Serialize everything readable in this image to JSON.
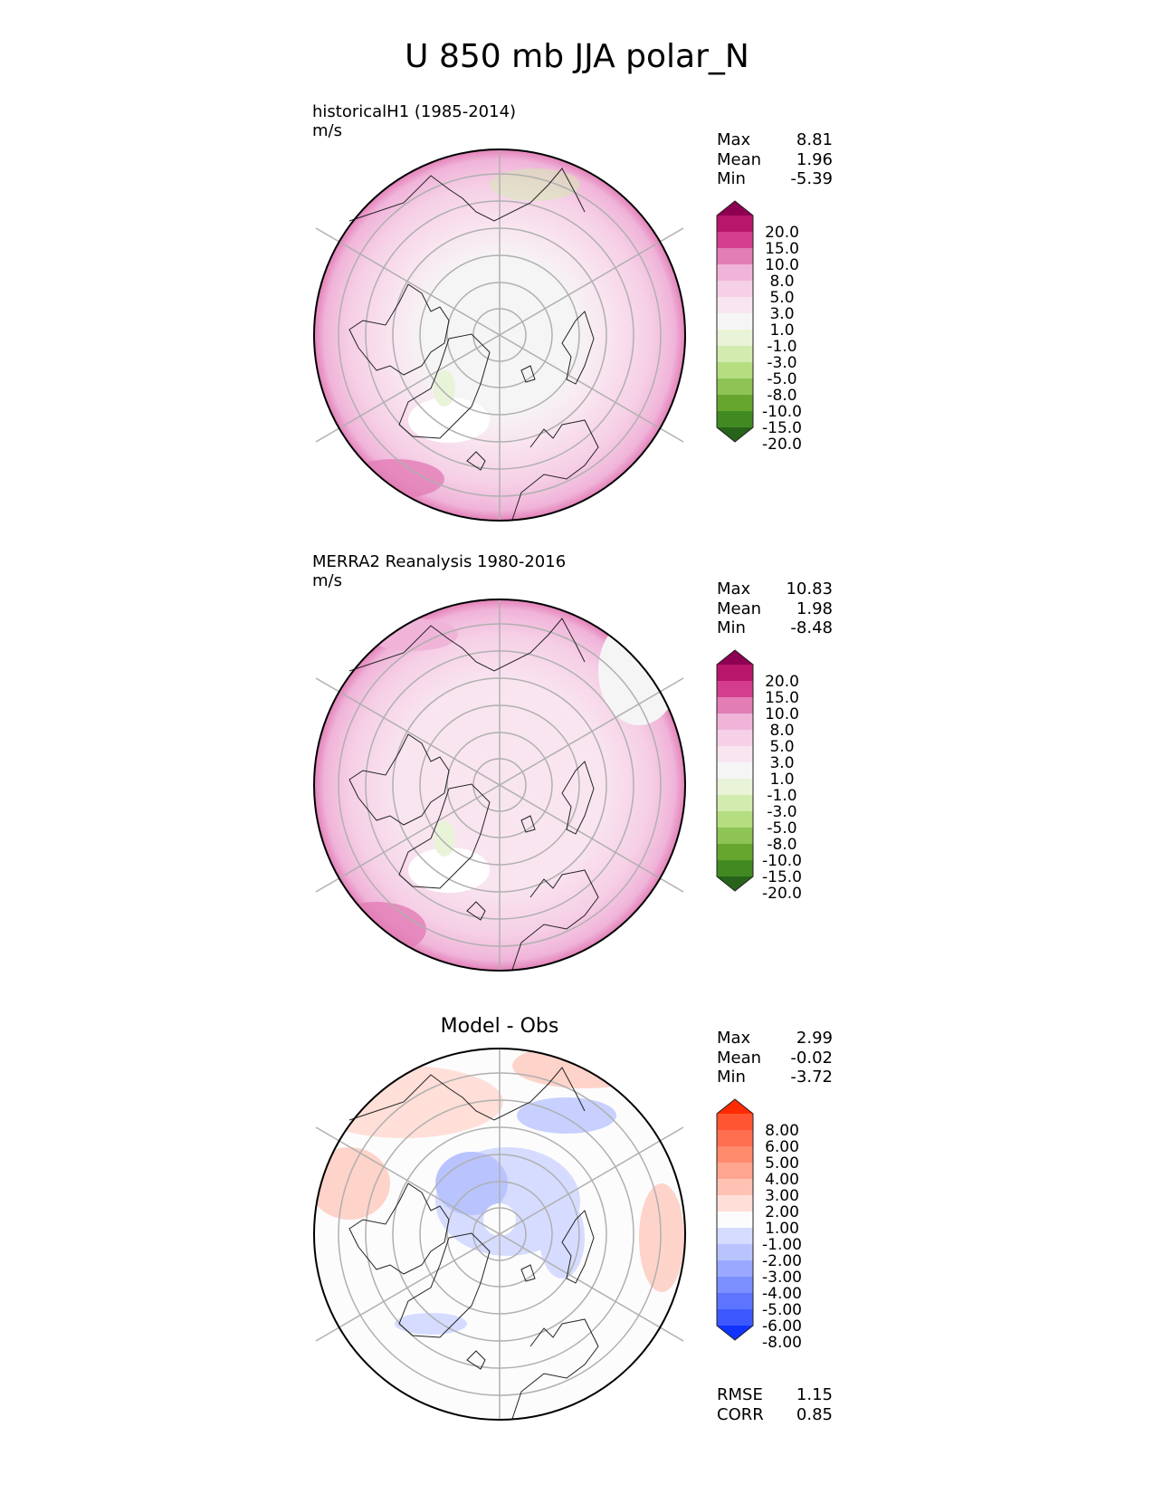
{
  "figure_title": "U 850 mb JJA polar_N",
  "panels": [
    {
      "title_line1": "historicalH1 (1985-2014)",
      "title_line2": "m/s",
      "stats": [
        {
          "label": "Max",
          "value": "8.81"
        },
        {
          "label": "Mean",
          "value": "1.96"
        },
        {
          "label": "Min",
          "value": "-5.39"
        }
      ]
    },
    {
      "title_line1": "MERRA2 Reanalysis 1980-2016",
      "title_line2": "m/s",
      "stats": [
        {
          "label": "Max",
          "value": "10.83"
        },
        {
          "label": "Mean",
          "value": "1.98"
        },
        {
          "label": "Min",
          "value": "-8.48"
        }
      ]
    },
    {
      "title": "Model - Obs",
      "stats": [
        {
          "label": "Max",
          "value": "2.99"
        },
        {
          "label": "Mean",
          "value": "-0.02"
        },
        {
          "label": "Min",
          "value": "-3.72"
        }
      ],
      "metrics": [
        {
          "label": "RMSE",
          "value": "1.15"
        },
        {
          "label": "CORR",
          "value": "0.85"
        }
      ]
    }
  ],
  "chart_data": [
    {
      "type": "heatmap",
      "projection": "north polar stereographic",
      "title": "historicalH1 (1985-2014)",
      "units": "m/s",
      "colorbar": {
        "levels": [
          "20.0",
          "15.0",
          "10.0",
          "8.0",
          "5.0",
          "3.0",
          "1.0",
          "-1.0",
          "-3.0",
          "-5.0",
          "-8.0",
          "-10.0",
          "-15.0",
          "-20.0"
        ],
        "colors": [
          "#8e0152",
          "#b7166a",
          "#d43d8d",
          "#e27db6",
          "#f0b4d9",
          "#f6d0e6",
          "#f9e5f0",
          "#f5f5f5",
          "#e9f3d8",
          "#d2ebaf",
          "#b4de80",
          "#8ec356",
          "#66a52e",
          "#418a21",
          "#276419"
        ]
      },
      "summary": {
        "max": 8.81,
        "mean": 1.96,
        "min": -5.39
      }
    },
    {
      "type": "heatmap",
      "projection": "north polar stereographic",
      "title": "MERRA2 Reanalysis 1980-2016",
      "units": "m/s",
      "colorbar": {
        "levels": [
          "20.0",
          "15.0",
          "10.0",
          "8.0",
          "5.0",
          "3.0",
          "1.0",
          "-1.0",
          "-3.0",
          "-5.0",
          "-8.0",
          "-10.0",
          "-15.0",
          "-20.0"
        ],
        "colors": [
          "#8e0152",
          "#b7166a",
          "#d43d8d",
          "#e27db6",
          "#f0b4d9",
          "#f6d0e6",
          "#f9e5f0",
          "#f5f5f5",
          "#e9f3d8",
          "#d2ebaf",
          "#b4de80",
          "#8ec356",
          "#66a52e",
          "#418a21",
          "#276419"
        ]
      },
      "summary": {
        "max": 10.83,
        "mean": 1.98,
        "min": -8.48
      }
    },
    {
      "type": "heatmap",
      "projection": "north polar stereographic",
      "title": "Model - Obs",
      "colorbar": {
        "levels": [
          "8.00",
          "6.00",
          "5.00",
          "4.00",
          "3.00",
          "2.00",
          "1.00",
          "-1.00",
          "-2.00",
          "-3.00",
          "-4.00",
          "-5.00",
          "-6.00",
          "-8.00"
        ],
        "colors": [
          "#ff2a00",
          "#ff5533",
          "#ff6f4f",
          "#ff8a6c",
          "#ffa590",
          "#ffc2b3",
          "#ffdfd8",
          "#fcfcfc",
          "#d6dcff",
          "#b9c4ff",
          "#9aa9ff",
          "#7c8fff",
          "#5d74ff",
          "#3d58ff",
          "#1133ff"
        ]
      },
      "summary": {
        "max": 2.99,
        "mean": -0.02,
        "min": -3.72,
        "rmse": 1.15,
        "corr": 0.85
      }
    }
  ]
}
